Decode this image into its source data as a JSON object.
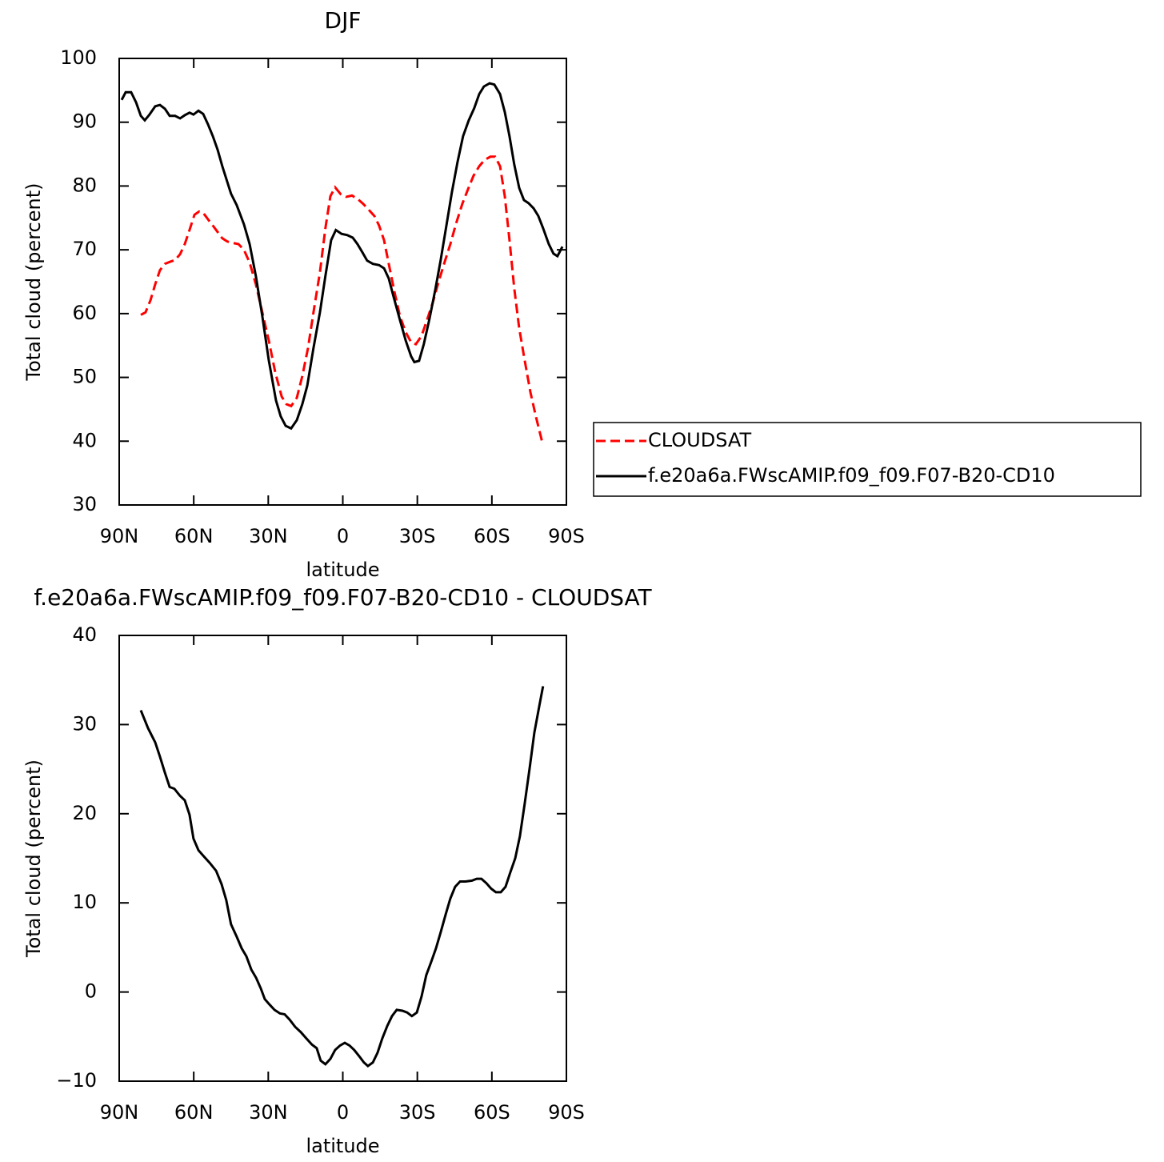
{
  "chart_data": [
    {
      "type": "line",
      "title": "DJF",
      "xlabel": "latitude",
      "ylabel": "Total cloud (percent)",
      "xlim": [
        90,
        -90
      ],
      "xticks": [
        {
          "value": 90,
          "label": "90N"
        },
        {
          "value": 60,
          "label": "60N"
        },
        {
          "value": 30,
          "label": "30N"
        },
        0,
        {
          "value": -30,
          "label": "30S"
        },
        {
          "value": -60,
          "label": "60S"
        },
        {
          "value": -90,
          "label": "90S"
        }
      ],
      "ylim": [
        30,
        100
      ],
      "yticks": [
        30,
        40,
        50,
        60,
        70,
        80,
        90,
        100
      ],
      "legend": "right",
      "series": [
        {
          "name": "CLOUDSAT",
          "color": "#ff0000",
          "dashed": true,
          "x": [
            81.3,
            79.4,
            77.4,
            75.5,
            73.6,
            71.6,
            69.7,
            67.5,
            65.5,
            63.6,
            61.7,
            59.7,
            57.8,
            56.2,
            54.3,
            52.3,
            50.4,
            48.5,
            46.5,
            44.6,
            42,
            39.8,
            37.5,
            35,
            32.4,
            29.8,
            27.2,
            24.6,
            22.7,
            20.8,
            18.5,
            16.3,
            14,
            11.8,
            9.2,
            7,
            5,
            3.1,
            0.8,
            -1.4,
            -3.7,
            -5.9,
            -8.2,
            -10.4,
            -12.7,
            -14.6,
            -16.6,
            -18.5,
            -20.8,
            -23,
            -25.3,
            -27.5,
            -29.4,
            -31.7,
            -33.9,
            -36.2,
            -38.5,
            -41,
            -43.3,
            -45.5,
            -48.1,
            -50.4,
            -52.6,
            -54.9,
            -57.1,
            -59.4,
            -61.3,
            -63.3,
            -65.2,
            -67.1,
            -69,
            -71,
            -73.2,
            -75.5,
            -77.7,
            -80.3
          ],
          "values": [
            59.8,
            60.2,
            62.1,
            64.6,
            66.8,
            67.8,
            68.1,
            68.4,
            69.3,
            70.9,
            73.1,
            75.5,
            76,
            75.8,
            74.8,
            73.8,
            72.8,
            71.8,
            71.3,
            71.1,
            70.9,
            70,
            68,
            64.6,
            60.2,
            55.8,
            50.8,
            47,
            45.8,
            45.5,
            46.8,
            50.2,
            54.6,
            60.2,
            66.5,
            73.4,
            78.4,
            79.8,
            78.7,
            78.3,
            78.5,
            78,
            77.2,
            76.3,
            75.3,
            73.8,
            71.5,
            67.8,
            63.4,
            59.6,
            57.1,
            55.5,
            55.2,
            56.5,
            59,
            61.7,
            64.9,
            68.1,
            70.9,
            74,
            77.2,
            79.5,
            81.6,
            83.1,
            84.1,
            84.6,
            84.6,
            83.1,
            78.4,
            71.5,
            64,
            57.7,
            52.7,
            47.7,
            43.9,
            39.8
          ]
        },
        {
          "name": "f.e20a6a.FWscAMIP.f09_f09.F07-B20-CD10",
          "color": "#000000",
          "dashed": false,
          "x": [
            89,
            87.4,
            85.2,
            83.2,
            81.3,
            79.7,
            77.8,
            75.5,
            73.6,
            71.6,
            69.7,
            67.5,
            65.5,
            63.6,
            61.7,
            60.1,
            58.1,
            56.2,
            54.3,
            52.3,
            50.4,
            48.5,
            45,
            42.7,
            39.8,
            37.5,
            35,
            32.4,
            29.8,
            26.9,
            25,
            23,
            20.8,
            18.5,
            16.3,
            14.3,
            11.8,
            9.2,
            7,
            4.7,
            2.8,
            0.5,
            -1.8,
            -4,
            -5.9,
            -7.9,
            -9.8,
            -12.1,
            -14.6,
            -16.6,
            -18.5,
            -20.4,
            -23,
            -25.3,
            -27.5,
            -28.8,
            -30.7,
            -32.6,
            -34.9,
            -37.2,
            -39.4,
            -41.7,
            -43.9,
            -46.2,
            -48.4,
            -50.7,
            -52.9,
            -54.9,
            -56.8,
            -59.1,
            -61,
            -63.3,
            -65.2,
            -67.1,
            -69,
            -71,
            -72.9,
            -74.8,
            -76.8,
            -78.7,
            -80.6,
            -82.9,
            -84.8,
            -86.4,
            -88.4
          ],
          "values": [
            93.5,
            94.7,
            94.7,
            93.1,
            91,
            90.3,
            91.2,
            92.5,
            92.7,
            92.1,
            91,
            91,
            90.6,
            91.1,
            91.5,
            91.2,
            91.8,
            91.3,
            89.7,
            87.8,
            85.7,
            83.1,
            78.8,
            77,
            74,
            70.9,
            65.9,
            59.6,
            52.7,
            46.4,
            43.9,
            42.4,
            42,
            43.3,
            45.8,
            48.7,
            54.6,
            60.2,
            65.9,
            71.5,
            73.1,
            72.5,
            72.3,
            71.9,
            70.9,
            69.6,
            68.3,
            67.8,
            67.6,
            67.1,
            65.5,
            62.7,
            59,
            55.8,
            53.3,
            52.4,
            52.6,
            55.2,
            59.2,
            63.7,
            68.4,
            73.8,
            79,
            83.8,
            87.8,
            90.3,
            92.2,
            94.4,
            95.6,
            96.1,
            95.9,
            94.4,
            91.6,
            87.8,
            83.4,
            79.7,
            77.8,
            77.3,
            76.5,
            75.3,
            73.4,
            70.9,
            69.4,
            69,
            70.5
          ]
        }
      ]
    },
    {
      "type": "line",
      "title": "f.e20a6a.FWscAMIP.f09_f09.F07-B20-CD10 - CLOUDSAT",
      "xlabel": "latitude",
      "ylabel": "Total cloud (percent)",
      "xlim": [
        90,
        -90
      ],
      "xticks": [
        {
          "value": 90,
          "label": "90N"
        },
        {
          "value": 60,
          "label": "60N"
        },
        {
          "value": 30,
          "label": "30N"
        },
        0,
        {
          "value": -30,
          "label": "30S"
        },
        {
          "value": -60,
          "label": "60S"
        },
        {
          "value": -90,
          "label": "90S"
        }
      ],
      "ylim": [
        -10,
        40
      ],
      "yticks": [
        {
          "value": -10,
          "label": "−10"
        },
        0,
        10,
        20,
        30,
        40
      ],
      "series": [
        {
          "color": "#000000",
          "dashed": false,
          "x": [
            81.3,
            78.4,
            75.5,
            73.6,
            71.6,
            69.7,
            67.8,
            65.5,
            63.6,
            61.7,
            60.1,
            58.1,
            55.9,
            53.6,
            51,
            48.8,
            46.9,
            45,
            42.7,
            40.7,
            38.8,
            36.8,
            34.9,
            33,
            31.4,
            29.5,
            27.5,
            25.3,
            23.4,
            21.4,
            19.2,
            16.9,
            14.7,
            12.4,
            10.5,
            8.9,
            7,
            5,
            3.1,
            1.1,
            -0.8,
            -2.7,
            -4.6,
            -6.6,
            -8.5,
            -10.1,
            -12.1,
            -14,
            -15.9,
            -17.9,
            -19.8,
            -21.7,
            -24,
            -25.9,
            -27.8,
            -29.8,
            -31.7,
            -33.6,
            -35.6,
            -37.5,
            -39.4,
            -41.4,
            -43.3,
            -45.2,
            -47.2,
            -49.4,
            -52,
            -53.9,
            -55.8,
            -57.8,
            -59.7,
            -61.6,
            -63.6,
            -65.5,
            -67.4,
            -69.4,
            -71.3,
            -73.2,
            -75.2,
            -77.1,
            -79.1,
            -80.6
          ],
          "values": [
            31.6,
            29.6,
            28,
            26.4,
            24.6,
            23,
            22.8,
            22,
            21.5,
            19.9,
            17.2,
            15.9,
            15.2,
            14.5,
            13.6,
            12.1,
            10.3,
            7.6,
            6.2,
            4.9,
            4,
            2.5,
            1.6,
            0.4,
            -0.8,
            -1.4,
            -2,
            -2.4,
            -2.5,
            -3.1,
            -3.9,
            -4.5,
            -5.2,
            -5.9,
            -6.3,
            -7.7,
            -8.1,
            -7.5,
            -6.5,
            -6,
            -5.7,
            -6,
            -6.5,
            -7.2,
            -7.9,
            -8.3,
            -7.9,
            -6.8,
            -5.2,
            -3.8,
            -2.7,
            -2,
            -2.1,
            -2.3,
            -2.7,
            -2.3,
            -0.5,
            1.9,
            3.4,
            4.9,
            6.7,
            8.7,
            10.5,
            11.8,
            12.4,
            12.4,
            12.5,
            12.7,
            12.7,
            12.2,
            11.6,
            11.2,
            11.2,
            11.8,
            13.4,
            15,
            17.5,
            21.1,
            25.1,
            29.1,
            32.1,
            34.3
          ]
        }
      ]
    }
  ]
}
